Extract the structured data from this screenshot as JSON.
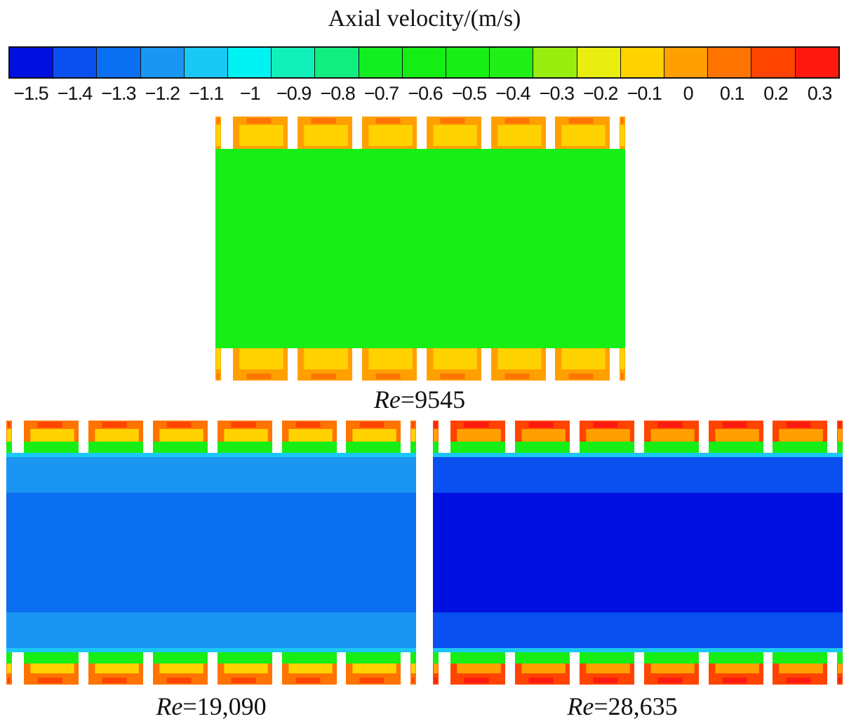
{
  "colorbar": {
    "title": "Axial velocity/(m/s)",
    "ticks": [
      "-1.5",
      "-1.4",
      "-1.3",
      "-1.2",
      "-1.1",
      "-1",
      "-0.9",
      "-0.8",
      "-0.7",
      "-0.6",
      "-0.5",
      "-0.4",
      "-0.3",
      "-0.2",
      "-0.1",
      "0",
      "0.1",
      "0.2",
      "0.3"
    ],
    "colors": [
      "#0010e0",
      "#0a4ff0",
      "#0a6ff0",
      "#1a96f2",
      "#1ac8f5",
      "#00f2f2",
      "#10f0b8",
      "#10ee80",
      "#12ee20",
      "#14ee14",
      "#16ee16",
      "#22ee18",
      "#99ee10",
      "#eaee10",
      "#ffd200",
      "#ffa000",
      "#ff7400",
      "#ff4400",
      "#ff1a10"
    ]
  },
  "panels": [
    {
      "re_symbol": "Re",
      "re_value": "=9545",
      "core_color": "#16ee16",
      "band_color": "#16ee16",
      "cavity_style": "low"
    },
    {
      "re_symbol": "Re",
      "re_value": "=19,090",
      "core_color": "#0a6ff0",
      "band_color": "#1a96f2",
      "cavity_style": "mid"
    },
    {
      "re_symbol": "Re",
      "re_value": "=28,635",
      "core_color": "#0010e0",
      "band_color": "#0a4ff0",
      "cavity_style": "high"
    }
  ]
}
